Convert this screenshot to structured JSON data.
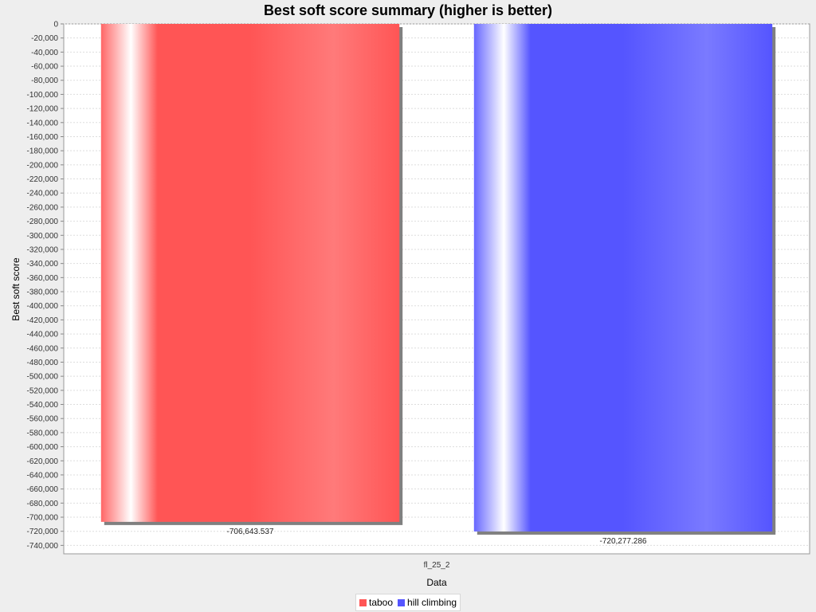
{
  "chart_data": {
    "type": "bar",
    "title": "Best soft score summary (higher is better)",
    "xlabel": "Data",
    "ylabel": "Best soft score",
    "categories": [
      "fl_25_2"
    ],
    "series": [
      {
        "name": "taboo",
        "values": [
          -706643.537
        ],
        "label": "-706,643.537",
        "color": "#ff5555"
      },
      {
        "name": "hill climbing",
        "values": [
          -720277.286
        ],
        "label": "-720,277.286",
        "color": "#5555ff"
      }
    ],
    "ylim": [
      -752000,
      0
    ],
    "yticks": [
      0,
      -20000,
      -40000,
      -60000,
      -80000,
      -100000,
      -120000,
      -140000,
      -160000,
      -180000,
      -200000,
      -220000,
      -240000,
      -260000,
      -280000,
      -300000,
      -320000,
      -340000,
      -360000,
      -380000,
      -400000,
      -420000,
      -440000,
      -460000,
      -480000,
      -500000,
      -520000,
      -540000,
      -560000,
      -580000,
      -600000,
      -620000,
      -640000,
      -660000,
      -680000,
      -700000,
      -720000,
      -740000
    ],
    "ytick_labels": [
      "0",
      "-20,000",
      "-40,000",
      "-60,000",
      "-80,000",
      "-100,000",
      "-120,000",
      "-140,000",
      "-160,000",
      "-180,000",
      "-200,000",
      "-220,000",
      "-240,000",
      "-260,000",
      "-280,000",
      "-300,000",
      "-320,000",
      "-340,000",
      "-360,000",
      "-380,000",
      "-400,000",
      "-420,000",
      "-440,000",
      "-460,000",
      "-480,000",
      "-500,000",
      "-520,000",
      "-540,000",
      "-560,000",
      "-580,000",
      "-600,000",
      "-620,000",
      "-640,000",
      "-660,000",
      "-680,000",
      "-700,000",
      "-720,000",
      "-740,000"
    ],
    "grid": true,
    "legend_position": "bottom"
  }
}
